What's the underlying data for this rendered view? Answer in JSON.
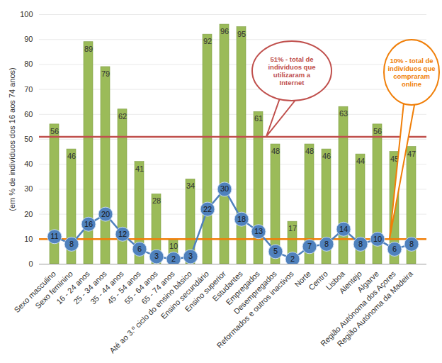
{
  "chart_data": {
    "type": "bar",
    "y_label": "(em % de indivíduos dos 16 aos 74 anos)",
    "categories": [
      "Sexo masculino",
      "Sexo feminino",
      "16 - 24 anos",
      "25 - 34 anos",
      "35 - 44 anos",
      "45 - 54 anos",
      "55 - 64 anos",
      "65 - 74 anos",
      "Até ao 3.º ciclo do ensino básico",
      "Ensino secundário",
      "Ensino superior",
      "Estudantes",
      "Empregados",
      "Desempregados",
      "Reformados e outros inactivos",
      "Norte",
      "Centro",
      "Lisboa",
      "Alentejo",
      "Algarve",
      "Região Autónoma dos Açores",
      "Região Autónoma da Madeira"
    ],
    "series": [
      {
        "type": "bar",
        "color": "#9bbb59",
        "values": [
          56,
          46,
          89,
          79,
          62,
          41,
          28,
          10,
          34,
          92,
          96,
          95,
          61,
          48,
          17,
          48,
          46,
          63,
          44,
          56,
          45,
          47
        ]
      },
      {
        "type": "line",
        "color": "#4f81bd",
        "marker": "circle",
        "values": [
          11,
          8,
          16,
          20,
          12,
          6,
          3,
          2,
          3,
          22,
          30,
          18,
          13,
          5,
          2,
          7,
          8,
          14,
          8,
          10,
          6,
          8
        ]
      }
    ],
    "reference_lines": [
      {
        "value": 51,
        "color": "#c0504d",
        "label": "51% - total de indivíduos que utilizaram a Internet"
      },
      {
        "value": 10,
        "color": "#f07f09",
        "label": "10% - total de indivíduos que compraram online"
      }
    ],
    "ylim": [
      0,
      100
    ],
    "yticks": [
      0,
      10,
      20,
      30,
      40,
      50,
      60,
      70,
      80,
      90,
      100
    ],
    "grid": true,
    "data_labels": true
  }
}
